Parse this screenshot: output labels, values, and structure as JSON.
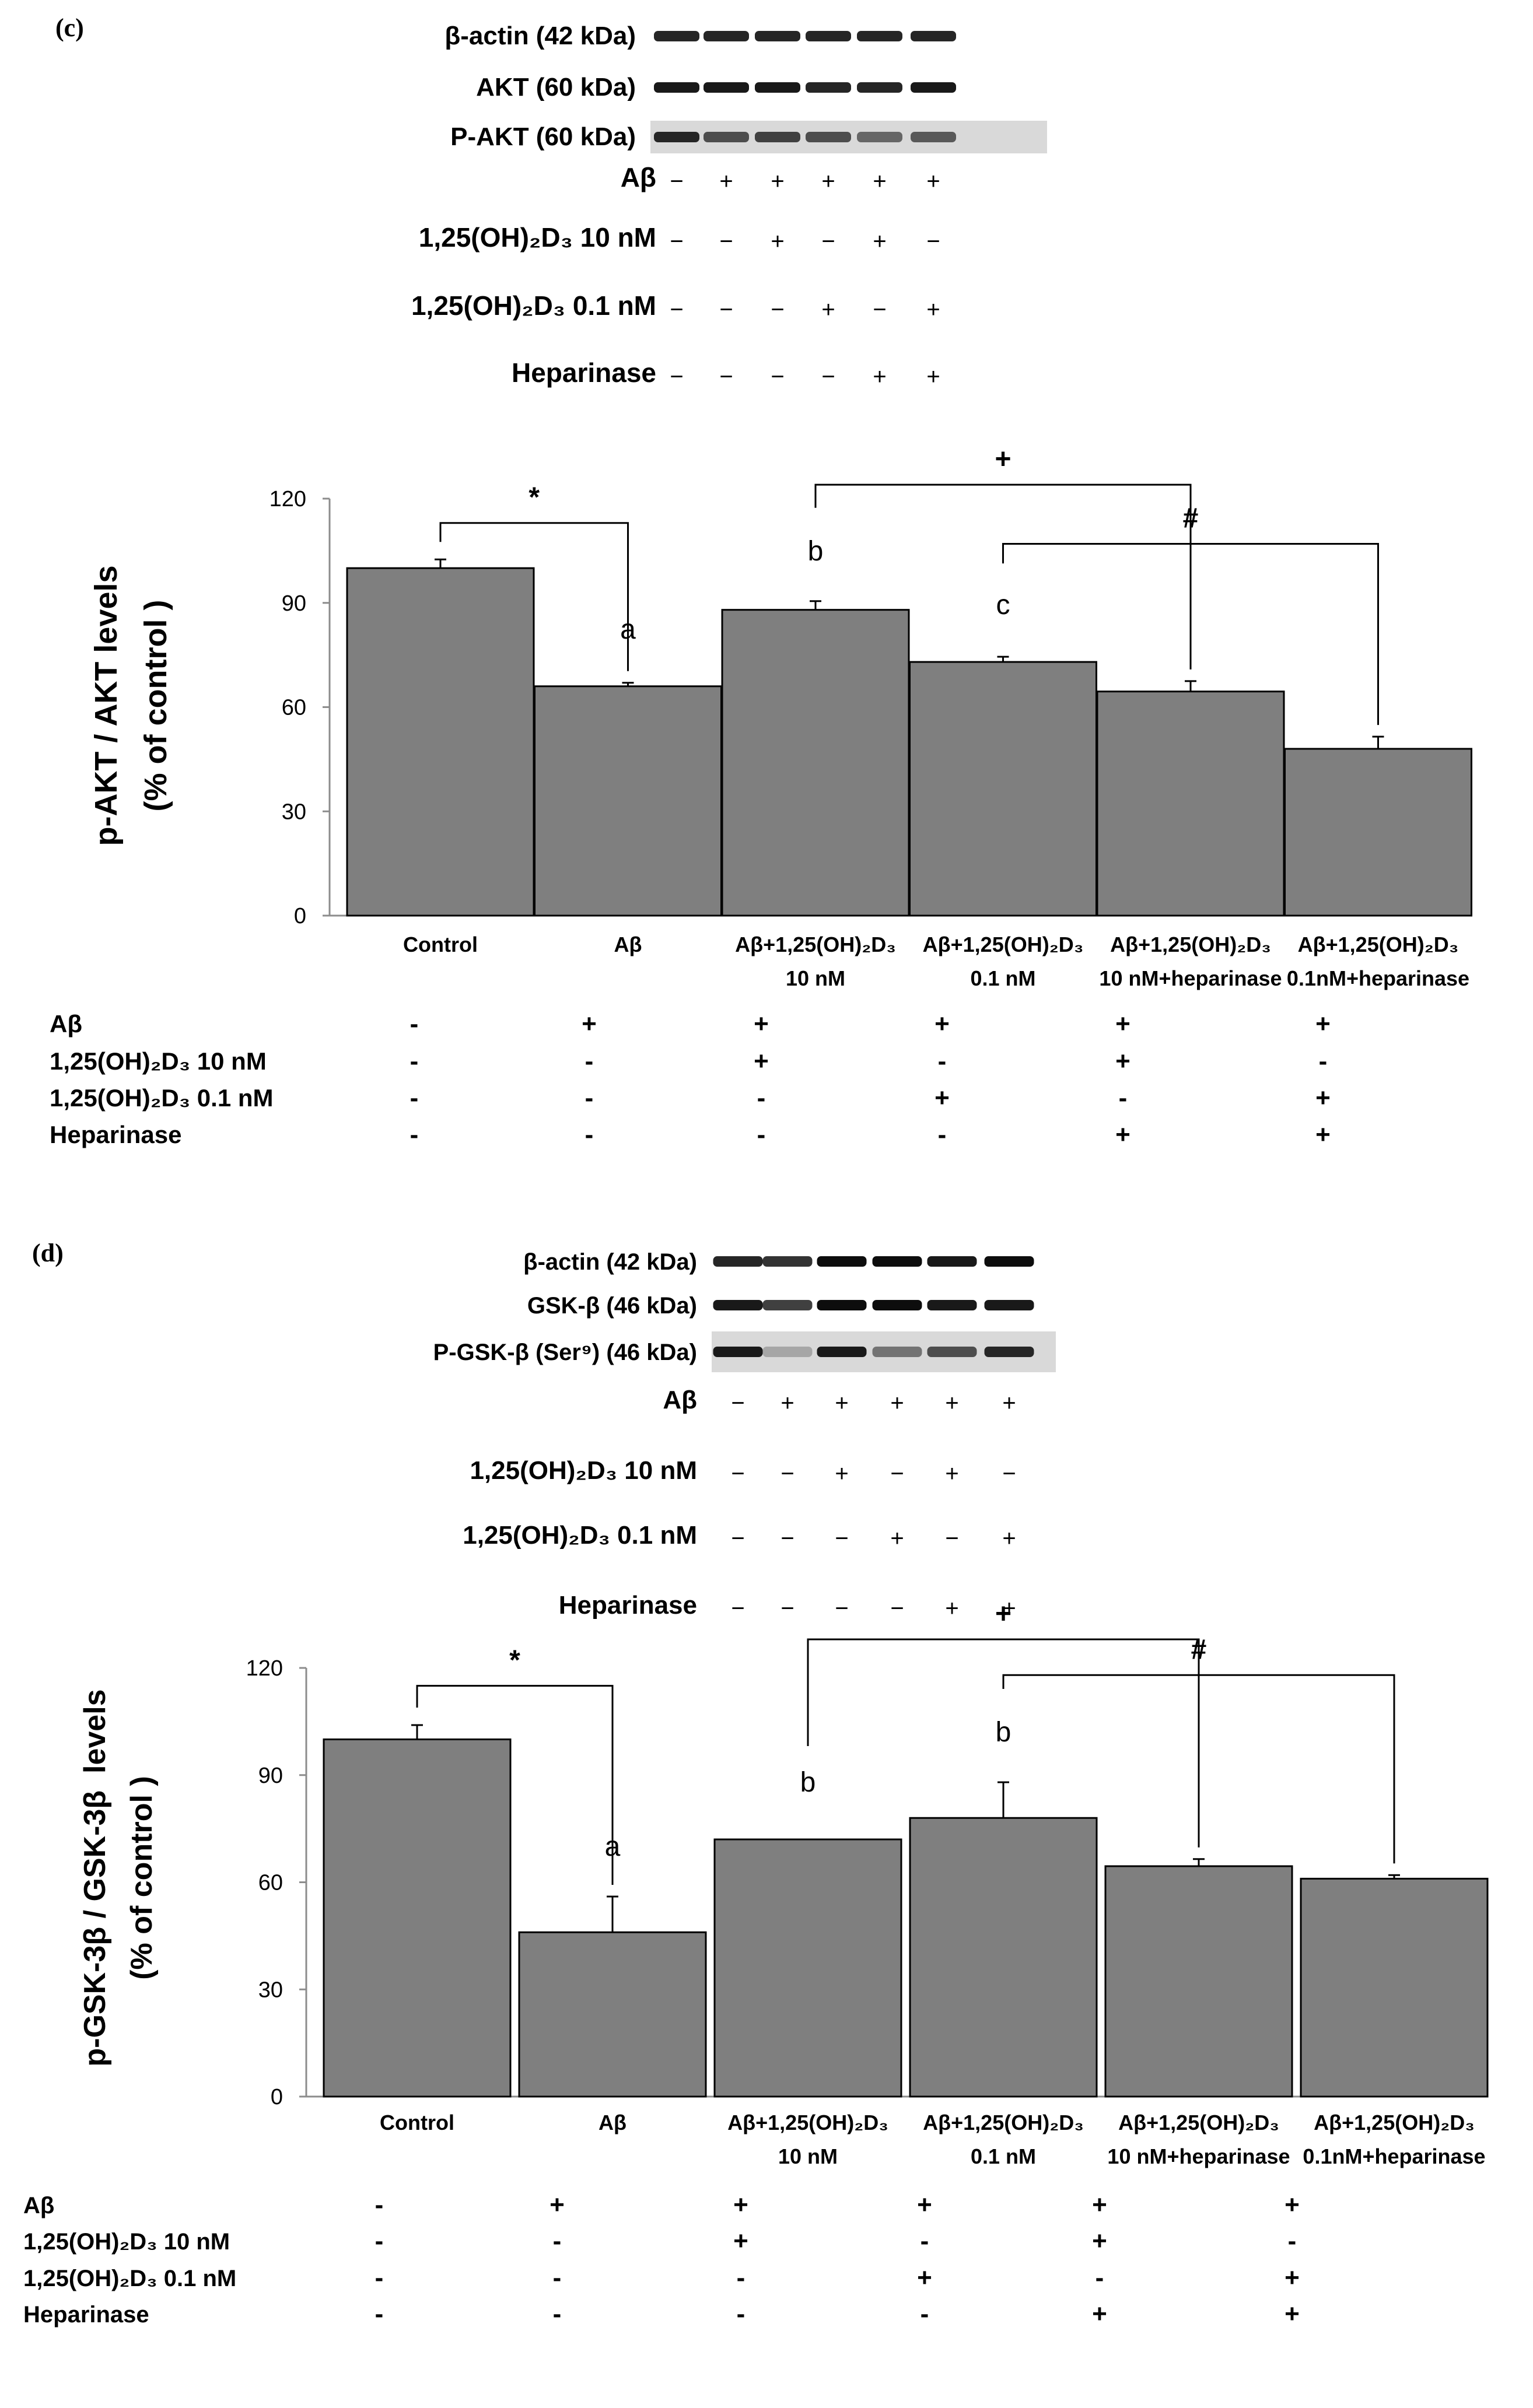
{
  "panels": [
    {
      "panel_label": "(c)",
      "blots": [
        {
          "label": "β-actin (42 kDa)",
          "intensities": [
            0.85,
            0.85,
            0.85,
            0.85,
            0.85,
            0.85
          ]
        },
        {
          "label": "AKT (60 kDa)",
          "intensities": [
            0.9,
            0.9,
            0.9,
            0.85,
            0.85,
            0.9
          ]
        },
        {
          "label": "P-AKT (60 kDa)",
          "intensities": [
            0.85,
            0.7,
            0.75,
            0.7,
            0.6,
            0.65
          ]
        }
      ],
      "blot_conditions": [
        {
          "label": "Aβ",
          "signs": [
            "−",
            "+",
            "+",
            "+",
            "+",
            "+"
          ]
        },
        {
          "label": "1,25(OH)₂D₃ 10 nM",
          "signs": [
            "−",
            "−",
            "+",
            "−",
            "+",
            "−"
          ]
        },
        {
          "label": "1,25(OH)₂D₃ 0.1 nM",
          "signs": [
            "−",
            "−",
            "−",
            "+",
            "−",
            "+"
          ]
        },
        {
          "label": "Heparinase",
          "signs": [
            "−",
            "−",
            "−",
            "−",
            "+",
            "+"
          ]
        }
      ],
      "chart_data": {
        "type": "bar",
        "categories": [
          [
            "Control"
          ],
          [
            "Aβ"
          ],
          [
            "Aβ+1,25(OH)₂D₃",
            "10 nM"
          ],
          [
            "Aβ+1,25(OH)₂D₃",
            "0.1 nM"
          ],
          [
            "Aβ+1,25(OH)₂D₃",
            "10 nM+heparinase"
          ],
          [
            "Aβ+1,25(OH)₂D₃",
            "0.1nM+heparinase"
          ]
        ],
        "values": [
          100,
          66,
          88,
          73,
          64.5,
          48
        ],
        "errors": [
          2.5,
          1,
          2.5,
          1.5,
          3,
          3.5
        ],
        "bar_labels": [
          "",
          "a",
          "b",
          "c",
          "",
          ""
        ],
        "ylabel": [
          "p-AKT / AKT levels",
          "(% of control )"
        ],
        "ylim": [
          0,
          120
        ],
        "yticks": [
          0,
          30,
          60,
          90,
          120
        ],
        "bar_color": "#7f7f7f",
        "significance": [
          {
            "symbol": "*",
            "from": 0,
            "to": 1,
            "level": 113
          },
          {
            "symbol": "+",
            "from": 2,
            "to": 4,
            "level": 124
          },
          {
            "symbol": "#",
            "from": 3,
            "to": 5,
            "level": 107
          }
        ]
      },
      "conditions_table": [
        {
          "label": "Aβ",
          "signs": [
            "-",
            "+",
            "+",
            "+",
            "+",
            "+"
          ]
        },
        {
          "label": "1,25(OH)₂D₃ 10 nM",
          "signs": [
            "-",
            "-",
            "+",
            "-",
            "+",
            "-"
          ]
        },
        {
          "label": "1,25(OH)₂D₃ 0.1 nM",
          "signs": [
            "-",
            "-",
            "-",
            "+",
            "-",
            "+"
          ]
        },
        {
          "label": "Heparinase",
          "signs": [
            "-",
            "-",
            "-",
            "-",
            "+",
            "+"
          ]
        }
      ]
    },
    {
      "panel_label": "(d)",
      "blots": [
        {
          "label": "β-actin (42 kDa)",
          "intensities": [
            0.85,
            0.8,
            0.95,
            0.95,
            0.9,
            0.95
          ]
        },
        {
          "label": "GSK-β (46 kDa)",
          "intensities": [
            0.9,
            0.75,
            0.95,
            0.95,
            0.9,
            0.9
          ]
        },
        {
          "label": "P-GSK-β (Ser⁹) (46 kDa)",
          "intensities": [
            0.9,
            0.35,
            0.9,
            0.55,
            0.7,
            0.85
          ]
        }
      ],
      "blot_conditions": [
        {
          "label": "Aβ",
          "signs": [
            "−",
            "+",
            "+",
            "+",
            "+",
            "+"
          ]
        },
        {
          "label": "1,25(OH)₂D₃ 10 nM",
          "signs": [
            "−",
            "−",
            "+",
            "−",
            "+",
            "−"
          ]
        },
        {
          "label": "1,25(OH)₂D₃ 0.1 nM",
          "signs": [
            "−",
            "−",
            "−",
            "+",
            "−",
            "+"
          ]
        },
        {
          "label": "Heparinase",
          "signs": [
            "−",
            "−",
            "−",
            "−",
            "+",
            "+"
          ]
        }
      ],
      "chart_data": {
        "type": "bar",
        "categories": [
          [
            "Control"
          ],
          [
            "Aβ"
          ],
          [
            "Aβ+1,25(OH)₂D₃",
            "10 nM"
          ],
          [
            "Aβ+1,25(OH)₂D₃",
            "0.1 nM"
          ],
          [
            "Aβ+1,25(OH)₂D₃",
            "10 nM+heparinase"
          ],
          [
            "Aβ+1,25(OH)₂D₃",
            "0.1nM+heparinase"
          ]
        ],
        "values": [
          100,
          46,
          72,
          78,
          64.5,
          61
        ],
        "errors": [
          4,
          10,
          0,
          10,
          2,
          1
        ],
        "bar_labels": [
          "",
          "a",
          "b",
          "b",
          "",
          ""
        ],
        "ylabel": [
          "p-GSK-3β / GSK-3β  levels",
          "(% of control )"
        ],
        "ylim": [
          0,
          120
        ],
        "yticks": [
          0,
          30,
          60,
          90,
          120
        ],
        "bar_color": "#7f7f7f",
        "significance": [
          {
            "symbol": "*",
            "from": 0,
            "to": 1,
            "level": 115
          },
          {
            "symbol": "+",
            "from": 2,
            "to": 4,
            "level": 128
          },
          {
            "symbol": "#",
            "from": 3,
            "to": 5,
            "level": 118
          }
        ]
      },
      "conditions_table": [
        {
          "label": "Aβ",
          "signs": [
            "-",
            "+",
            "+",
            "+",
            "+",
            "+"
          ]
        },
        {
          "label": "1,25(OH)₂D₃ 10 nM",
          "signs": [
            "-",
            "-",
            "+",
            "-",
            "+",
            "-"
          ]
        },
        {
          "label": "1,25(OH)₂D₃ 0.1 nM",
          "signs": [
            "-",
            "-",
            "-",
            "+",
            "-",
            "+"
          ]
        },
        {
          "label": "Heparinase",
          "signs": [
            "-",
            "-",
            "-",
            "-",
            "+",
            "+"
          ]
        }
      ]
    }
  ]
}
